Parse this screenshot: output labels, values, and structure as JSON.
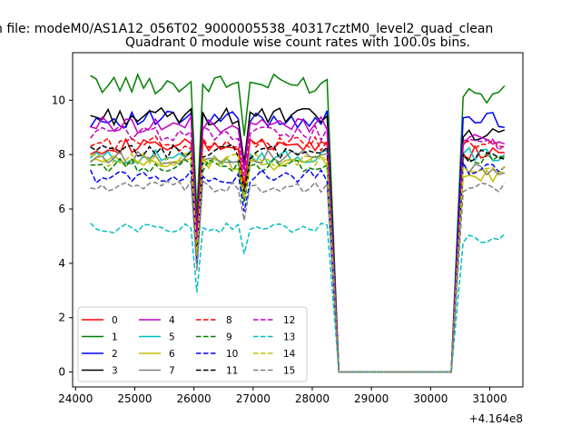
{
  "figure": {
    "suptitle": "n file: modeM0/AS1A12_056T02_9000005538_40317cztM0_level2_quad_clean",
    "title": "Quadrant 0 module wise count rates with 100.0s bins.",
    "x_offset_label": "+4.164e8"
  },
  "chart_data": {
    "type": "line",
    "title": "Quadrant 0 module wise count rates with 100.0s bins.",
    "xlabel": "",
    "ylabel": "",
    "x_offset": 416400000,
    "xlim": [
      23950,
      31560
    ],
    "ylim": [
      -0.55,
      11.75
    ],
    "xticks": [
      24000,
      25000,
      26000,
      27000,
      28000,
      29000,
      30000,
      31000
    ],
    "yticks": [
      0,
      2,
      4,
      6,
      8,
      10
    ],
    "x_tick_labels": [
      "24000",
      "25000",
      "26000",
      "27000",
      "28000",
      "29000",
      "30000",
      "31000"
    ],
    "y_tick_labels": [
      "0",
      "2",
      "4",
      "6",
      "8",
      "10"
    ],
    "grid": false,
    "legend": {
      "placement": "lower-left",
      "columns": 4
    },
    "segments": [
      {
        "start": 24250,
        "end": 28250,
        "step": 100
      },
      {
        "start": 28450,
        "end": 30350,
        "step": 100
      },
      {
        "start": 30550,
        "end": 31250,
        "step": 100
      }
    ],
    "dips": [
      {
        "x": 26050,
        "factor": 0.55
      },
      {
        "x": 26850,
        "factor": 0.82
      }
    ],
    "series": [
      {
        "name": "0",
        "color": "#ff0000",
        "dash": "solid",
        "base": 8.3,
        "rise": 8.1
      },
      {
        "name": "1",
        "color": "#008000",
        "dash": "solid",
        "base": 10.6,
        "rise": 10.2
      },
      {
        "name": "2",
        "color": "#0000ff",
        "dash": "solid",
        "base": 9.3,
        "rise": 9.3
      },
      {
        "name": "3",
        "color": "#000000",
        "dash": "solid",
        "base": 9.4,
        "rise": 8.7
      },
      {
        "name": "4",
        "color": "#bf00bf",
        "dash": "solid",
        "base": 9.1,
        "rise": 8.6
      },
      {
        "name": "5",
        "color": "#00bfbf",
        "dash": "solid",
        "base": 7.9,
        "rise": 8.0
      },
      {
        "name": "6",
        "color": "#bfbf00",
        "dash": "solid",
        "base": 7.7,
        "rise": 7.2
      },
      {
        "name": "7",
        "color": "#808080",
        "dash": "solid",
        "base": 7.9,
        "rise": 7.5
      },
      {
        "name": "8",
        "color": "#ff0000",
        "dash": "dashed",
        "base": 8.4,
        "rise": 8.3
      },
      {
        "name": "9",
        "color": "#008000",
        "dash": "dashed",
        "base": 7.6,
        "rise": 7.8
      },
      {
        "name": "10",
        "color": "#0000ff",
        "dash": "dashed",
        "base": 7.2,
        "rise": 7.5
      },
      {
        "name": "11",
        "color": "#000000",
        "dash": "dashed",
        "base": 8.1,
        "rise": 7.9
      },
      {
        "name": "12",
        "color": "#bf00bf",
        "dash": "dashed",
        "base": 8.8,
        "rise": 8.4
      },
      {
        "name": "13",
        "color": "#00bfbf",
        "dash": "dashed",
        "base": 5.3,
        "rise": 4.9
      },
      {
        "name": "14",
        "color": "#bfbf00",
        "dash": "dashed",
        "base": 7.8,
        "rise": 7.4
      },
      {
        "name": "15",
        "color": "#808080",
        "dash": "dashed",
        "base": 6.8,
        "rise": 6.8
      }
    ]
  }
}
